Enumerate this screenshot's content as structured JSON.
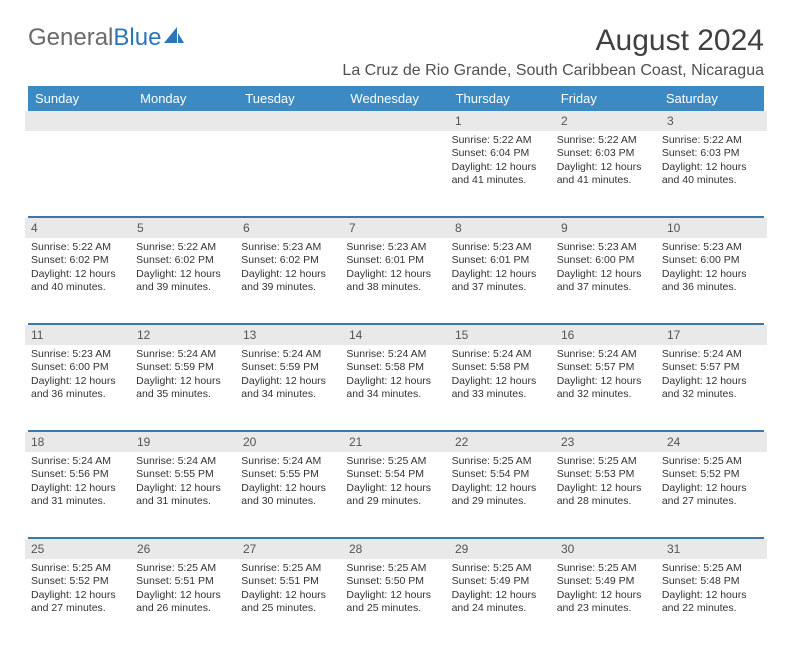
{
  "brand": {
    "part1": "General",
    "part2": "Blue"
  },
  "title": "August 2024",
  "location": "La Cruz de Rio Grande, South Caribbean Coast, Nicaragua",
  "colors": {
    "header_bg": "#3b8ac4",
    "header_text": "#ffffff",
    "daynum_bg": "#e9e9e9",
    "rule": "#3b77a8",
    "brand_blue": "#2a76b8",
    "brand_grey": "#6a6a6a"
  },
  "day_headers": [
    "Sunday",
    "Monday",
    "Tuesday",
    "Wednesday",
    "Thursday",
    "Friday",
    "Saturday"
  ],
  "weeks": [
    [
      {
        "num": "",
        "sunrise": "",
        "sunset": "",
        "daylight": ""
      },
      {
        "num": "",
        "sunrise": "",
        "sunset": "",
        "daylight": ""
      },
      {
        "num": "",
        "sunrise": "",
        "sunset": "",
        "daylight": ""
      },
      {
        "num": "",
        "sunrise": "",
        "sunset": "",
        "daylight": ""
      },
      {
        "num": "1",
        "sunrise": "Sunrise: 5:22 AM",
        "sunset": "Sunset: 6:04 PM",
        "daylight": "Daylight: 12 hours and 41 minutes."
      },
      {
        "num": "2",
        "sunrise": "Sunrise: 5:22 AM",
        "sunset": "Sunset: 6:03 PM",
        "daylight": "Daylight: 12 hours and 41 minutes."
      },
      {
        "num": "3",
        "sunrise": "Sunrise: 5:22 AM",
        "sunset": "Sunset: 6:03 PM",
        "daylight": "Daylight: 12 hours and 40 minutes."
      }
    ],
    [
      {
        "num": "4",
        "sunrise": "Sunrise: 5:22 AM",
        "sunset": "Sunset: 6:02 PM",
        "daylight": "Daylight: 12 hours and 40 minutes."
      },
      {
        "num": "5",
        "sunrise": "Sunrise: 5:22 AM",
        "sunset": "Sunset: 6:02 PM",
        "daylight": "Daylight: 12 hours and 39 minutes."
      },
      {
        "num": "6",
        "sunrise": "Sunrise: 5:23 AM",
        "sunset": "Sunset: 6:02 PM",
        "daylight": "Daylight: 12 hours and 39 minutes."
      },
      {
        "num": "7",
        "sunrise": "Sunrise: 5:23 AM",
        "sunset": "Sunset: 6:01 PM",
        "daylight": "Daylight: 12 hours and 38 minutes."
      },
      {
        "num": "8",
        "sunrise": "Sunrise: 5:23 AM",
        "sunset": "Sunset: 6:01 PM",
        "daylight": "Daylight: 12 hours and 37 minutes."
      },
      {
        "num": "9",
        "sunrise": "Sunrise: 5:23 AM",
        "sunset": "Sunset: 6:00 PM",
        "daylight": "Daylight: 12 hours and 37 minutes."
      },
      {
        "num": "10",
        "sunrise": "Sunrise: 5:23 AM",
        "sunset": "Sunset: 6:00 PM",
        "daylight": "Daylight: 12 hours and 36 minutes."
      }
    ],
    [
      {
        "num": "11",
        "sunrise": "Sunrise: 5:23 AM",
        "sunset": "Sunset: 6:00 PM",
        "daylight": "Daylight: 12 hours and 36 minutes."
      },
      {
        "num": "12",
        "sunrise": "Sunrise: 5:24 AM",
        "sunset": "Sunset: 5:59 PM",
        "daylight": "Daylight: 12 hours and 35 minutes."
      },
      {
        "num": "13",
        "sunrise": "Sunrise: 5:24 AM",
        "sunset": "Sunset: 5:59 PM",
        "daylight": "Daylight: 12 hours and 34 minutes."
      },
      {
        "num": "14",
        "sunrise": "Sunrise: 5:24 AM",
        "sunset": "Sunset: 5:58 PM",
        "daylight": "Daylight: 12 hours and 34 minutes."
      },
      {
        "num": "15",
        "sunrise": "Sunrise: 5:24 AM",
        "sunset": "Sunset: 5:58 PM",
        "daylight": "Daylight: 12 hours and 33 minutes."
      },
      {
        "num": "16",
        "sunrise": "Sunrise: 5:24 AM",
        "sunset": "Sunset: 5:57 PM",
        "daylight": "Daylight: 12 hours and 32 minutes."
      },
      {
        "num": "17",
        "sunrise": "Sunrise: 5:24 AM",
        "sunset": "Sunset: 5:57 PM",
        "daylight": "Daylight: 12 hours and 32 minutes."
      }
    ],
    [
      {
        "num": "18",
        "sunrise": "Sunrise: 5:24 AM",
        "sunset": "Sunset: 5:56 PM",
        "daylight": "Daylight: 12 hours and 31 minutes."
      },
      {
        "num": "19",
        "sunrise": "Sunrise: 5:24 AM",
        "sunset": "Sunset: 5:55 PM",
        "daylight": "Daylight: 12 hours and 31 minutes."
      },
      {
        "num": "20",
        "sunrise": "Sunrise: 5:24 AM",
        "sunset": "Sunset: 5:55 PM",
        "daylight": "Daylight: 12 hours and 30 minutes."
      },
      {
        "num": "21",
        "sunrise": "Sunrise: 5:25 AM",
        "sunset": "Sunset: 5:54 PM",
        "daylight": "Daylight: 12 hours and 29 minutes."
      },
      {
        "num": "22",
        "sunrise": "Sunrise: 5:25 AM",
        "sunset": "Sunset: 5:54 PM",
        "daylight": "Daylight: 12 hours and 29 minutes."
      },
      {
        "num": "23",
        "sunrise": "Sunrise: 5:25 AM",
        "sunset": "Sunset: 5:53 PM",
        "daylight": "Daylight: 12 hours and 28 minutes."
      },
      {
        "num": "24",
        "sunrise": "Sunrise: 5:25 AM",
        "sunset": "Sunset: 5:52 PM",
        "daylight": "Daylight: 12 hours and 27 minutes."
      }
    ],
    [
      {
        "num": "25",
        "sunrise": "Sunrise: 5:25 AM",
        "sunset": "Sunset: 5:52 PM",
        "daylight": "Daylight: 12 hours and 27 minutes."
      },
      {
        "num": "26",
        "sunrise": "Sunrise: 5:25 AM",
        "sunset": "Sunset: 5:51 PM",
        "daylight": "Daylight: 12 hours and 26 minutes."
      },
      {
        "num": "27",
        "sunrise": "Sunrise: 5:25 AM",
        "sunset": "Sunset: 5:51 PM",
        "daylight": "Daylight: 12 hours and 25 minutes."
      },
      {
        "num": "28",
        "sunrise": "Sunrise: 5:25 AM",
        "sunset": "Sunset: 5:50 PM",
        "daylight": "Daylight: 12 hours and 25 minutes."
      },
      {
        "num": "29",
        "sunrise": "Sunrise: 5:25 AM",
        "sunset": "Sunset: 5:49 PM",
        "daylight": "Daylight: 12 hours and 24 minutes."
      },
      {
        "num": "30",
        "sunrise": "Sunrise: 5:25 AM",
        "sunset": "Sunset: 5:49 PM",
        "daylight": "Daylight: 12 hours and 23 minutes."
      },
      {
        "num": "31",
        "sunrise": "Sunrise: 5:25 AM",
        "sunset": "Sunset: 5:48 PM",
        "daylight": "Daylight: 12 hours and 22 minutes."
      }
    ]
  ]
}
